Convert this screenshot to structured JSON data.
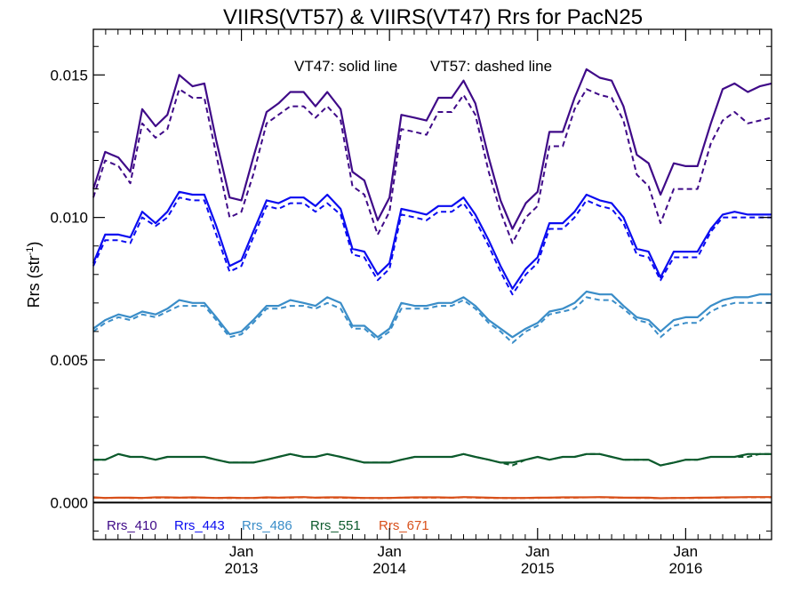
{
  "chart_data": {
    "type": "line",
    "title": "VIIRS(VT57) & VIIRS(VT47)  Rrs for PacN25",
    "ylabel": "Rrs (str",
    "ylabel_sup": "-1",
    "annotation_left": "VT47: solid line",
    "annotation_right": "VT57: dashed line",
    "ylim": [
      -0.0013,
      0.0166
    ],
    "xlim": [
      2012.0,
      2016.58
    ],
    "grid": false,
    "y_ticks": [
      {
        "value": 0.0,
        "label": "0.000"
      },
      {
        "value": 0.005,
        "label": "0.005"
      },
      {
        "value": 0.01,
        "label": "0.010"
      },
      {
        "value": 0.015,
        "label": "0.015"
      }
    ],
    "x_ticks": [
      {
        "value": 2013.0,
        "month": "Jan",
        "year": "2013"
      },
      {
        "value": 2014.0,
        "month": "Jan",
        "year": "2014"
      },
      {
        "value": 2015.0,
        "month": "Jan",
        "year": "2015"
      },
      {
        "value": 2016.0,
        "month": "Jan",
        "year": "2016"
      }
    ],
    "zero_line": 0.0,
    "x": [
      2012.0,
      2012.08,
      2012.17,
      2012.25,
      2012.33,
      2012.42,
      2012.5,
      2012.58,
      2012.67,
      2012.75,
      2012.83,
      2012.92,
      2013.0,
      2013.08,
      2013.17,
      2013.25,
      2013.33,
      2013.42,
      2013.5,
      2013.58,
      2013.67,
      2013.75,
      2013.83,
      2013.92,
      2014.0,
      2014.08,
      2014.17,
      2014.25,
      2014.33,
      2014.42,
      2014.5,
      2014.58,
      2014.67,
      2014.75,
      2014.83,
      2014.92,
      2015.0,
      2015.08,
      2015.17,
      2015.25,
      2015.33,
      2015.42,
      2015.5,
      2015.58,
      2015.67,
      2015.75,
      2015.83,
      2015.92,
      2016.0,
      2016.08,
      2016.17,
      2016.25,
      2016.33,
      2016.42,
      2016.5,
      2016.58
    ],
    "series": [
      {
        "name": "Rrs_410",
        "color": "#3f0a88",
        "vt47": [
          0.011,
          0.0123,
          0.0121,
          0.0116,
          0.0138,
          0.0132,
          0.0136,
          0.015,
          0.0146,
          0.0147,
          0.0127,
          0.0107,
          0.0106,
          0.0121,
          0.0137,
          0.014,
          0.0144,
          0.0144,
          0.0139,
          0.0144,
          0.0138,
          0.0116,
          0.0113,
          0.0099,
          0.0107,
          0.0136,
          0.0135,
          0.0134,
          0.0142,
          0.0142,
          0.0148,
          0.014,
          0.0121,
          0.0106,
          0.0096,
          0.0105,
          0.0109,
          0.013,
          0.013,
          0.0142,
          0.0152,
          0.0149,
          0.0148,
          0.0139,
          0.0122,
          0.0119,
          0.0108,
          0.0119,
          0.0118,
          0.0118,
          0.0133,
          0.0145,
          0.0147,
          0.0144,
          0.0146,
          0.0147
        ],
        "vt57": [
          0.0107,
          0.012,
          0.0118,
          0.0112,
          0.0133,
          0.0128,
          0.0131,
          0.0145,
          0.0142,
          0.0142,
          0.0122,
          0.01,
          0.0102,
          0.0115,
          0.0133,
          0.0136,
          0.0139,
          0.0139,
          0.0135,
          0.0139,
          0.0134,
          0.0111,
          0.0108,
          0.0094,
          0.0102,
          0.0131,
          0.013,
          0.0129,
          0.0137,
          0.0137,
          0.0143,
          0.0136,
          0.0116,
          0.0102,
          0.0091,
          0.01,
          0.0104,
          0.0125,
          0.0125,
          0.0138,
          0.0145,
          0.0143,
          0.0142,
          0.0134,
          0.0115,
          0.0111,
          0.0098,
          0.011,
          0.011,
          0.011,
          0.0126,
          0.0134,
          0.0137,
          0.0133,
          0.0134,
          0.0135
        ]
      },
      {
        "name": "Rrs_443",
        "color": "#0b0cf0",
        "vt47": [
          0.0084,
          0.0094,
          0.0094,
          0.0093,
          0.0102,
          0.0098,
          0.0102,
          0.0109,
          0.0108,
          0.0108,
          0.0097,
          0.0083,
          0.0085,
          0.0095,
          0.0106,
          0.0105,
          0.0107,
          0.0107,
          0.0104,
          0.0108,
          0.0103,
          0.0089,
          0.0088,
          0.008,
          0.0084,
          0.0103,
          0.0102,
          0.0101,
          0.0104,
          0.0104,
          0.0107,
          0.0101,
          0.0092,
          0.0083,
          0.0075,
          0.0082,
          0.0086,
          0.0098,
          0.0098,
          0.0102,
          0.0108,
          0.0106,
          0.0105,
          0.01,
          0.0089,
          0.0088,
          0.0079,
          0.0088,
          0.0088,
          0.0088,
          0.0096,
          0.0101,
          0.0102,
          0.0101,
          0.0101,
          0.0101
        ],
        "vt57": [
          0.0083,
          0.0092,
          0.0092,
          0.0091,
          0.01,
          0.0097,
          0.01,
          0.0107,
          0.0106,
          0.0106,
          0.0094,
          0.0081,
          0.0083,
          0.0093,
          0.0104,
          0.0103,
          0.0105,
          0.0105,
          0.0102,
          0.0105,
          0.0101,
          0.0087,
          0.0086,
          0.0078,
          0.0082,
          0.0101,
          0.01,
          0.0099,
          0.0102,
          0.0102,
          0.0105,
          0.0099,
          0.009,
          0.0081,
          0.0073,
          0.008,
          0.0084,
          0.0096,
          0.0096,
          0.01,
          0.0106,
          0.0104,
          0.0103,
          0.0098,
          0.0087,
          0.0086,
          0.0078,
          0.0086,
          0.0086,
          0.0086,
          0.0095,
          0.01,
          0.01,
          0.01,
          0.01,
          0.01
        ]
      },
      {
        "name": "Rrs_486",
        "color": "#3a8dc8",
        "vt47": [
          0.0061,
          0.0064,
          0.0066,
          0.0065,
          0.0067,
          0.0066,
          0.0068,
          0.0071,
          0.007,
          0.007,
          0.0065,
          0.0059,
          0.006,
          0.0064,
          0.0069,
          0.0069,
          0.0071,
          0.007,
          0.0069,
          0.0072,
          0.007,
          0.0062,
          0.0062,
          0.0058,
          0.0061,
          0.007,
          0.0069,
          0.0069,
          0.007,
          0.007,
          0.0072,
          0.0069,
          0.0064,
          0.0061,
          0.0058,
          0.0061,
          0.0063,
          0.0067,
          0.0068,
          0.007,
          0.0074,
          0.0073,
          0.0073,
          0.0069,
          0.0065,
          0.0064,
          0.006,
          0.0064,
          0.0065,
          0.0065,
          0.0069,
          0.0071,
          0.0072,
          0.0072,
          0.0073,
          0.0073
        ],
        "vt57": [
          0.006,
          0.0063,
          0.0065,
          0.0064,
          0.0066,
          0.0065,
          0.0067,
          0.0069,
          0.0069,
          0.0069,
          0.0064,
          0.0058,
          0.0059,
          0.0063,
          0.0068,
          0.0068,
          0.0069,
          0.0069,
          0.0068,
          0.007,
          0.0068,
          0.0061,
          0.0061,
          0.0057,
          0.006,
          0.0068,
          0.0068,
          0.0068,
          0.0069,
          0.0069,
          0.0071,
          0.0068,
          0.0063,
          0.006,
          0.0056,
          0.006,
          0.0062,
          0.0066,
          0.0067,
          0.0068,
          0.0072,
          0.0071,
          0.0071,
          0.0068,
          0.0064,
          0.0063,
          0.0058,
          0.0062,
          0.0063,
          0.0063,
          0.0067,
          0.0069,
          0.007,
          0.007,
          0.007,
          0.007
        ]
      },
      {
        "name": "Rrs_551",
        "color": "#0c5a2c",
        "vt47": [
          0.0015,
          0.0015,
          0.0017,
          0.0016,
          0.0016,
          0.0015,
          0.0016,
          0.0016,
          0.0016,
          0.0016,
          0.0015,
          0.0014,
          0.0014,
          0.0014,
          0.0015,
          0.0016,
          0.0017,
          0.0016,
          0.0016,
          0.0017,
          0.0016,
          0.0015,
          0.0014,
          0.0014,
          0.0014,
          0.0015,
          0.0016,
          0.0016,
          0.0016,
          0.0016,
          0.0017,
          0.0016,
          0.0015,
          0.0014,
          0.0014,
          0.0015,
          0.0016,
          0.0015,
          0.0016,
          0.0016,
          0.0017,
          0.0017,
          0.0016,
          0.0015,
          0.0015,
          0.0015,
          0.0013,
          0.0014,
          0.0015,
          0.0015,
          0.0016,
          0.0016,
          0.0016,
          0.0017,
          0.0017,
          0.0017
        ],
        "vt57": [
          0.0015,
          0.0015,
          0.0017,
          0.0016,
          0.0016,
          0.0015,
          0.0016,
          0.0016,
          0.0016,
          0.0016,
          0.0015,
          0.0014,
          0.0014,
          0.0014,
          0.0015,
          0.0016,
          0.0017,
          0.0016,
          0.0016,
          0.0017,
          0.0016,
          0.0015,
          0.0014,
          0.0014,
          0.0014,
          0.0015,
          0.0016,
          0.0016,
          0.0016,
          0.0016,
          0.0017,
          0.0016,
          0.0015,
          0.0014,
          0.0013,
          0.0015,
          0.0016,
          0.0015,
          0.0016,
          0.0016,
          0.0017,
          0.0017,
          0.0016,
          0.0015,
          0.0015,
          0.0015,
          0.0013,
          0.0014,
          0.0015,
          0.0015,
          0.0016,
          0.0016,
          0.0016,
          0.0016,
          0.0017,
          0.0017
        ]
      },
      {
        "name": "Rrs_671",
        "color": "#d8501a",
        "vt47": [
          0.00018,
          0.00016,
          0.00017,
          0.00017,
          0.00016,
          0.00018,
          0.00018,
          0.00017,
          0.00018,
          0.00017,
          0.00016,
          0.00017,
          0.00016,
          0.00016,
          0.00018,
          0.00017,
          0.00018,
          0.00019,
          0.00017,
          0.00018,
          0.00018,
          0.00017,
          0.00016,
          0.00016,
          0.00016,
          0.00017,
          0.00018,
          0.00018,
          0.00018,
          0.00017,
          0.00019,
          0.00018,
          0.00017,
          0.00016,
          0.00016,
          0.00016,
          0.00017,
          0.00017,
          0.00018,
          0.00018,
          0.00018,
          0.00019,
          0.00018,
          0.00017,
          0.00017,
          0.00017,
          0.00015,
          0.00016,
          0.00016,
          0.00017,
          0.00017,
          0.00018,
          0.00018,
          0.00019,
          0.00019,
          0.00019
        ],
        "vt57": [
          0.00017,
          0.00016,
          0.00017,
          0.00016,
          0.00016,
          0.00017,
          0.00017,
          0.00017,
          0.00017,
          0.00017,
          0.00016,
          0.00016,
          0.00016,
          0.00016,
          0.00017,
          0.00017,
          0.00017,
          0.00018,
          0.00017,
          0.00017,
          0.00017,
          0.00016,
          0.00016,
          0.00015,
          0.00016,
          0.00017,
          0.00017,
          0.00017,
          0.00017,
          0.00017,
          0.00018,
          0.00017,
          0.00016,
          0.00016,
          0.00015,
          0.00016,
          0.00016,
          0.00017,
          0.00017,
          0.00017,
          0.00018,
          0.00018,
          0.00017,
          0.00017,
          0.00016,
          0.00016,
          0.00015,
          0.00016,
          0.00016,
          0.00016,
          0.00017,
          0.00017,
          0.00018,
          0.00018,
          0.00018,
          0.00018
        ]
      }
    ]
  }
}
